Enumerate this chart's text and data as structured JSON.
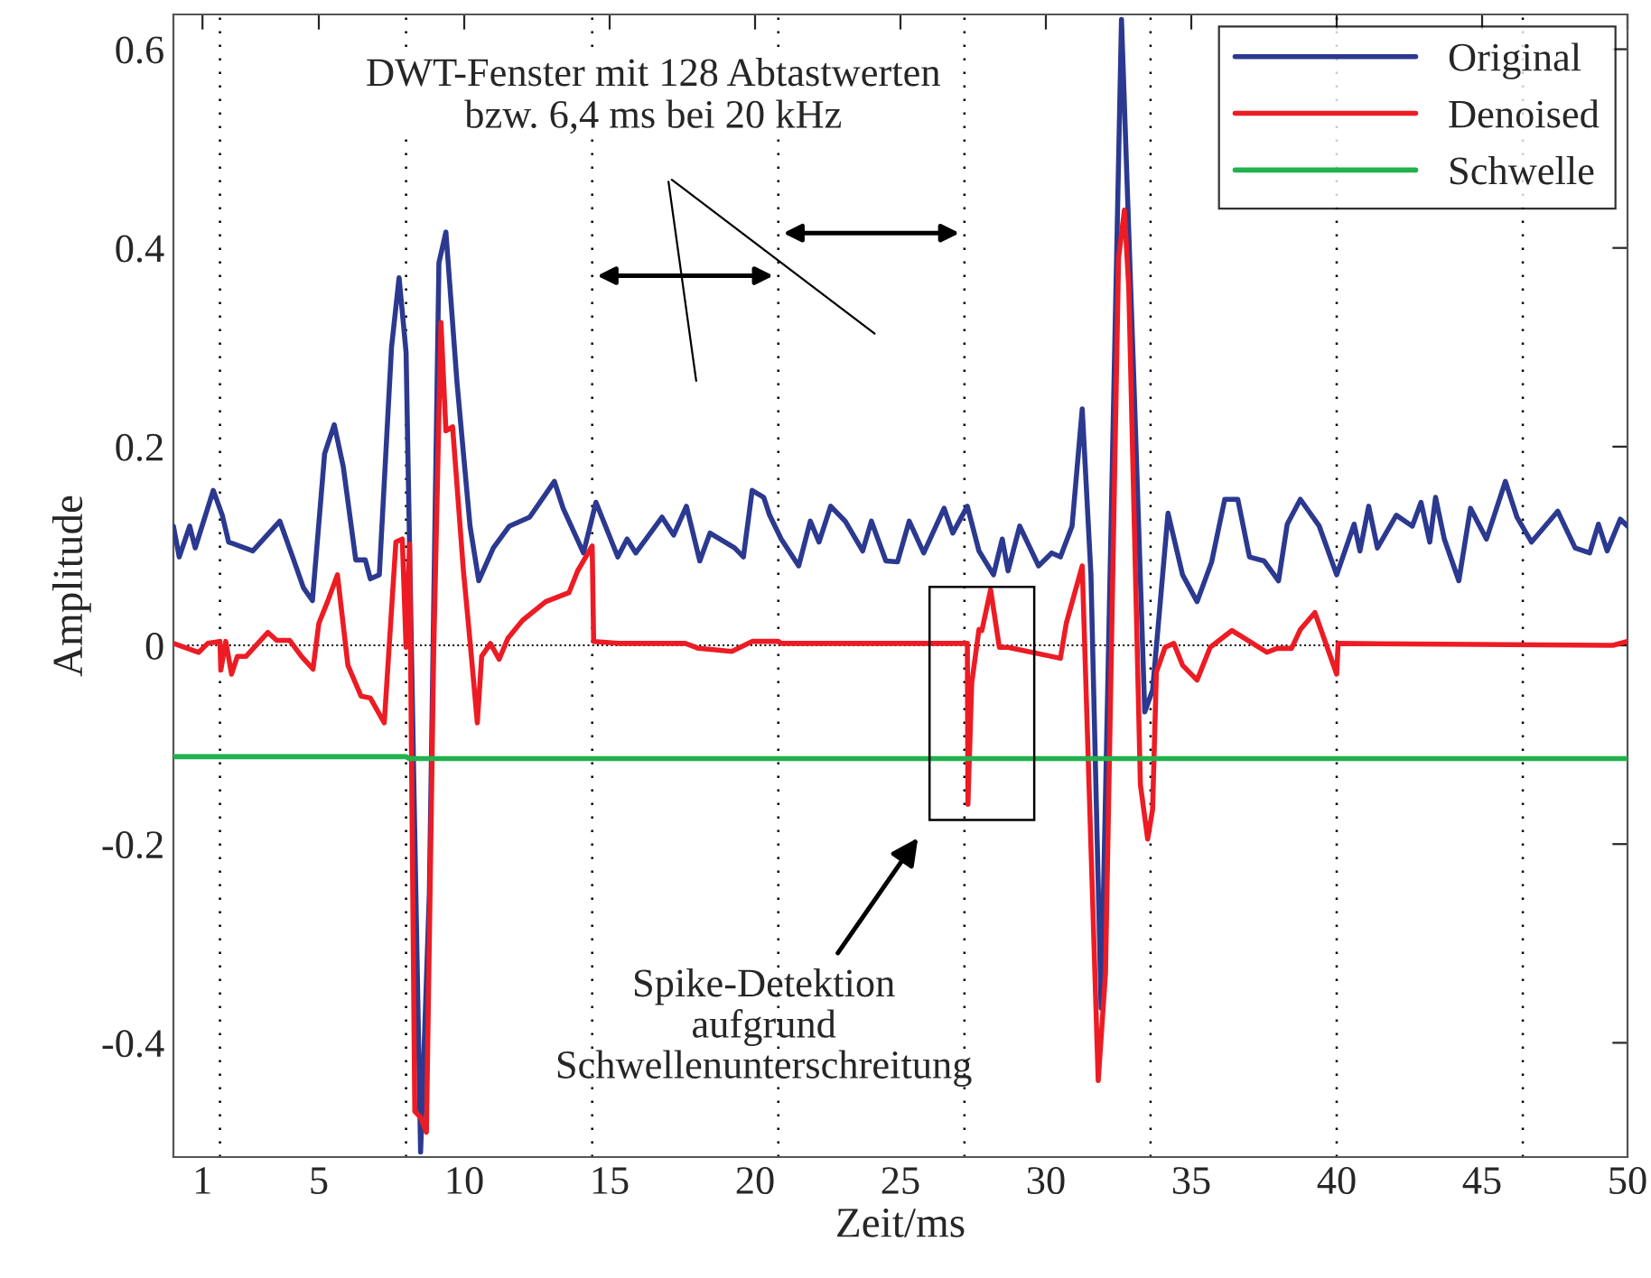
{
  "chart_data": {
    "type": "line",
    "xlabel": "Zeit/ms",
    "ylabel": "Amplitude",
    "xlim": [
      0,
      50
    ],
    "ylim": [
      -0.515,
      0.635
    ],
    "xticks": [
      1,
      5,
      10,
      15,
      20,
      25,
      30,
      35,
      40,
      45,
      50
    ],
    "yticks": [
      {
        "value": -0.4,
        "label": "-0.4"
      },
      {
        "value": -0.2,
        "label": "-0.2"
      },
      0,
      0.2,
      0.4,
      0.6
    ],
    "grid": false,
    "legend": "top right",
    "line_style": "solid",
    "marker": "none",
    "series": [
      {
        "name": "Original",
        "color": "#2b3990",
        "x": [
          0,
          0.2,
          0.56,
          0.75,
          1.37,
          1.68,
          1.9,
          2.73,
          3.66,
          4.1,
          4.47,
          4.78,
          5.2,
          5.53,
          5.84,
          6.27,
          6.6,
          6.77,
          7.08,
          7.5,
          7.76,
          8.0,
          8.3,
          8.5,
          8.8,
          9.13,
          9.37,
          9.75,
          10.2,
          10.5,
          11.0,
          11.55,
          12.25,
          13.1,
          13.4,
          14.1,
          14.53,
          15.28,
          15.6,
          15.9,
          16.8,
          17.2,
          17.64,
          18.1,
          18.45,
          19.3,
          19.6,
          19.9,
          20.3,
          20.5,
          20.9,
          21.5,
          21.9,
          22.2,
          22.6,
          23.1,
          23.7,
          24.0,
          24.5,
          24.9,
          25.3,
          25.8,
          26.5,
          26.8,
          27.3,
          27.7,
          28.2,
          28.5,
          28.7,
          29.1,
          29.75,
          30.2,
          30.5,
          30.9,
          31.25,
          31.55,
          31.9,
          32.6,
          33.0,
          33.4,
          33.67,
          34.2,
          34.7,
          35.2,
          35.7,
          36.15,
          36.6,
          37.0,
          37.5,
          38.0,
          38.3,
          38.75,
          39.4,
          40.0,
          40.6,
          40.8,
          41.1,
          41.4,
          42.05,
          42.6,
          42.9,
          43.2,
          43.4,
          43.7,
          44.2,
          44.6,
          45.15,
          45.8,
          46.2,
          46.7,
          47.6,
          48.2,
          48.7,
          49.0,
          49.3,
          49.75,
          50
        ],
        "values": [
          0.12,
          0.089,
          0.12,
          0.098,
          0.156,
          0.131,
          0.104,
          0.095,
          0.125,
          0.089,
          0.058,
          0.045,
          0.193,
          0.222,
          0.18,
          0.086,
          0.086,
          0.067,
          0.071,
          0.3,
          0.37,
          0.295,
          -0.19,
          -0.51,
          -0.25,
          0.385,
          0.416,
          0.265,
          0.12,
          0.065,
          0.098,
          0.12,
          0.129,
          0.165,
          0.138,
          0.093,
          0.144,
          0.089,
          0.107,
          0.093,
          0.129,
          0.111,
          0.14,
          0.085,
          0.113,
          0.098,
          0.089,
          0.156,
          0.149,
          0.131,
          0.107,
          0.08,
          0.125,
          0.104,
          0.14,
          0.125,
          0.095,
          0.125,
          0.085,
          0.084,
          0.125,
          0.093,
          0.138,
          0.113,
          0.14,
          0.095,
          0.071,
          0.107,
          0.075,
          0.12,
          0.08,
          0.093,
          0.089,
          0.12,
          0.238,
          0.071,
          -0.365,
          0.63,
          0.289,
          -0.067,
          -0.045,
          0.133,
          0.071,
          0.044,
          0.084,
          0.147,
          0.147,
          0.089,
          0.085,
          0.065,
          0.122,
          0.147,
          0.12,
          0.071,
          0.122,
          0.095,
          0.14,
          0.098,
          0.131,
          0.12,
          0.144,
          0.104,
          0.149,
          0.107,
          0.065,
          0.138,
          0.107,
          0.165,
          0.129,
          0.104,
          0.135,
          0.098,
          0.093,
          0.122,
          0.095,
          0.127,
          0.12
        ]
      },
      {
        "name": "Denoised",
        "color": "#ed1c24",
        "x": [
          0,
          0.87,
          1.18,
          1.6,
          1.63,
          1.8,
          2.0,
          2.2,
          2.5,
          3.25,
          3.55,
          4.0,
          4.4,
          4.8,
          5.0,
          5.3,
          5.64,
          6.0,
          6.45,
          6.77,
          7.25,
          7.65,
          7.87,
          8.0,
          8.12,
          8.3,
          8.5,
          8.7,
          8.95,
          9.2,
          9.37,
          9.6,
          9.97,
          10.2,
          10.45,
          10.6,
          10.9,
          11.2,
          11.5,
          12.0,
          12.8,
          13.6,
          13.9,
          14.4,
          14.45,
          15.3,
          17.6,
          18.05,
          19.2,
          19.9,
          20.8,
          20.9,
          27.3,
          27.32,
          27.45,
          27.7,
          27.8,
          28.1,
          28.4,
          28.7,
          30.5,
          30.7,
          31.25,
          31.8,
          32.05,
          32.5,
          32.7,
          32.85,
          33.25,
          33.5,
          33.67,
          33.8,
          34.1,
          34.4,
          34.7,
          35.2,
          35.65,
          36.4,
          37.0,
          37.6,
          37.95,
          38.45,
          38.75,
          39.25,
          40.0,
          40.05,
          49.5,
          50
        ],
        "values": [
          0.002,
          -0.007,
          0.002,
          0.004,
          -0.025,
          0.004,
          -0.029,
          -0.011,
          -0.011,
          0.013,
          0.005,
          0.005,
          -0.011,
          -0.024,
          0.022,
          0.044,
          0.071,
          -0.02,
          -0.051,
          -0.053,
          -0.078,
          0.104,
          0.107,
          -0.002,
          0.102,
          -0.469,
          -0.475,
          -0.49,
          -0.007,
          0.325,
          0.216,
          0.22,
          0.076,
          0.004,
          -0.078,
          -0.011,
          0.002,
          -0.014,
          0.007,
          0.025,
          0.044,
          0.053,
          0.075,
          0.1,
          0.004,
          0.002,
          0.002,
          -0.003,
          -0.006,
          0.004,
          0.004,
          0.002,
          0.002,
          -0.16,
          -0.038,
          0.016,
          0.015,
          0.056,
          -0.002,
          -0.002,
          -0.013,
          0.022,
          0.08,
          -0.438,
          -0.33,
          0.39,
          0.438,
          0.36,
          -0.14,
          -0.195,
          -0.165,
          -0.027,
          -0.002,
          0.002,
          -0.02,
          -0.035,
          -0.002,
          0.015,
          0.004,
          -0.007,
          -0.003,
          -0.003,
          0.016,
          0.033,
          -0.029,
          0.002,
          0,
          0.004
        ]
      },
      {
        "name": "Schwelle",
        "color": "#22b14c",
        "x": [
          0,
          8.0,
          8.1,
          50
        ],
        "values": [
          -0.112,
          -0.112,
          -0.114,
          -0.114
        ]
      }
    ],
    "ref_lines": [
      {
        "axis": "y",
        "value": 0,
        "color": "#000000",
        "line_style": "dotted"
      },
      {
        "axis": "x",
        "value": 1.6,
        "color": "#000000",
        "line_style": "dotted"
      },
      {
        "axis": "x",
        "value": 8.0,
        "color": "#000000",
        "line_style": "dotted"
      },
      {
        "axis": "x",
        "value": 14.4,
        "color": "#000000",
        "line_style": "dotted"
      },
      {
        "axis": "x",
        "value": 20.8,
        "color": "#000000",
        "line_style": "dotted"
      },
      {
        "axis": "x",
        "value": 27.2,
        "color": "#000000",
        "line_style": "dotted"
      },
      {
        "axis": "x",
        "value": 33.6,
        "color": "#000000",
        "line_style": "dotted"
      },
      {
        "axis": "x",
        "value": 40.0,
        "color": "#000000",
        "line_style": "dotted"
      },
      {
        "axis": "x",
        "value": 46.4,
        "color": "#000000",
        "line_style": "dotted"
      }
    ],
    "annotations": [
      "DWT-Fenster mit 128 Abtastwerten\nbzw. 6,4 ms bei 20 kHz",
      "Spike-Detektion\naufgrund\nSchwellenunterschreitung"
    ]
  }
}
